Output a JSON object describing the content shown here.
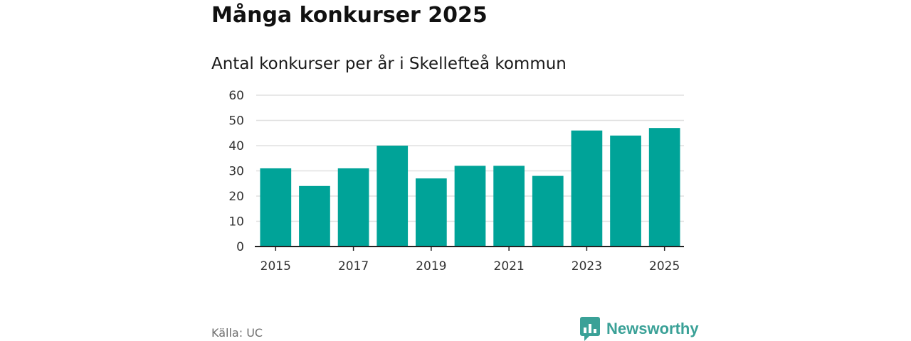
{
  "title": "Många konkurser 2025",
  "subtitle": "Antal konkurser per år i Skellefteå kommun",
  "source": "Källa: UC",
  "brand": {
    "name": "Newsworthy",
    "icon": "newsworthy-logo-icon",
    "color": "#3aa197"
  },
  "colors": {
    "bar": "#00a398",
    "grid": "#e0e0e0",
    "axis": "#222222"
  },
  "chart_data": {
    "type": "bar",
    "categories": [
      "2015",
      "2016",
      "2017",
      "2018",
      "2019",
      "2020",
      "2021",
      "2022",
      "2023",
      "2024",
      "2025"
    ],
    "values": [
      31,
      24,
      31,
      40,
      27,
      32,
      32,
      28,
      46,
      44,
      47
    ],
    "x_tick_labels": [
      "2015",
      "2017",
      "2019",
      "2021",
      "2023",
      "2025"
    ],
    "y_ticks": [
      0,
      10,
      20,
      30,
      40,
      50,
      60
    ],
    "ylim": [
      0,
      60
    ],
    "grid": true,
    "legend": "none"
  }
}
